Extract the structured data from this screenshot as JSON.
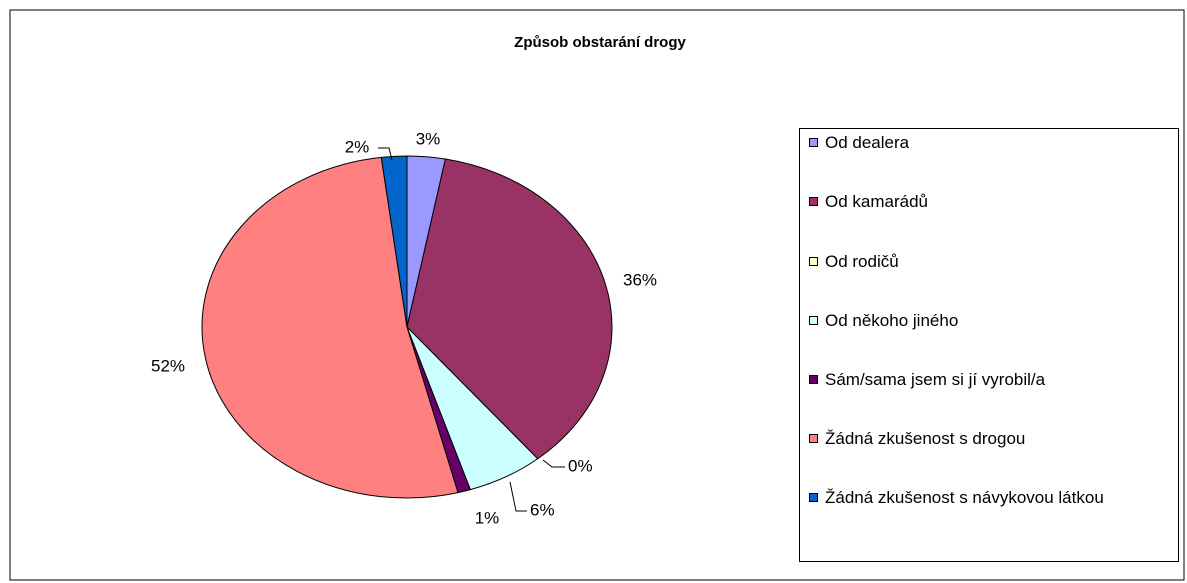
{
  "chart_data": {
    "type": "pie",
    "title": "Způsob obstarání drogy",
    "categories": [
      "Od dealera",
      "Od kamarádů",
      "Od rodičů",
      "Od někoho jiného",
      "Sám/sama jsem si jí vyrobil/a",
      "Žádná zkušenost s drogou",
      "Žádná zkušenost s návykovou látkou"
    ],
    "values": [
      3,
      36,
      0,
      6,
      1,
      52,
      2
    ],
    "value_labels": [
      "3%",
      "36%",
      "0%",
      "6%",
      "1%",
      "52%",
      "2%"
    ],
    "colors": [
      "#9999ff",
      "#993366",
      "#ffffcc",
      "#ccffff",
      "#660066",
      "#ff8080",
      "#0066cc"
    ],
    "legend": "right"
  }
}
